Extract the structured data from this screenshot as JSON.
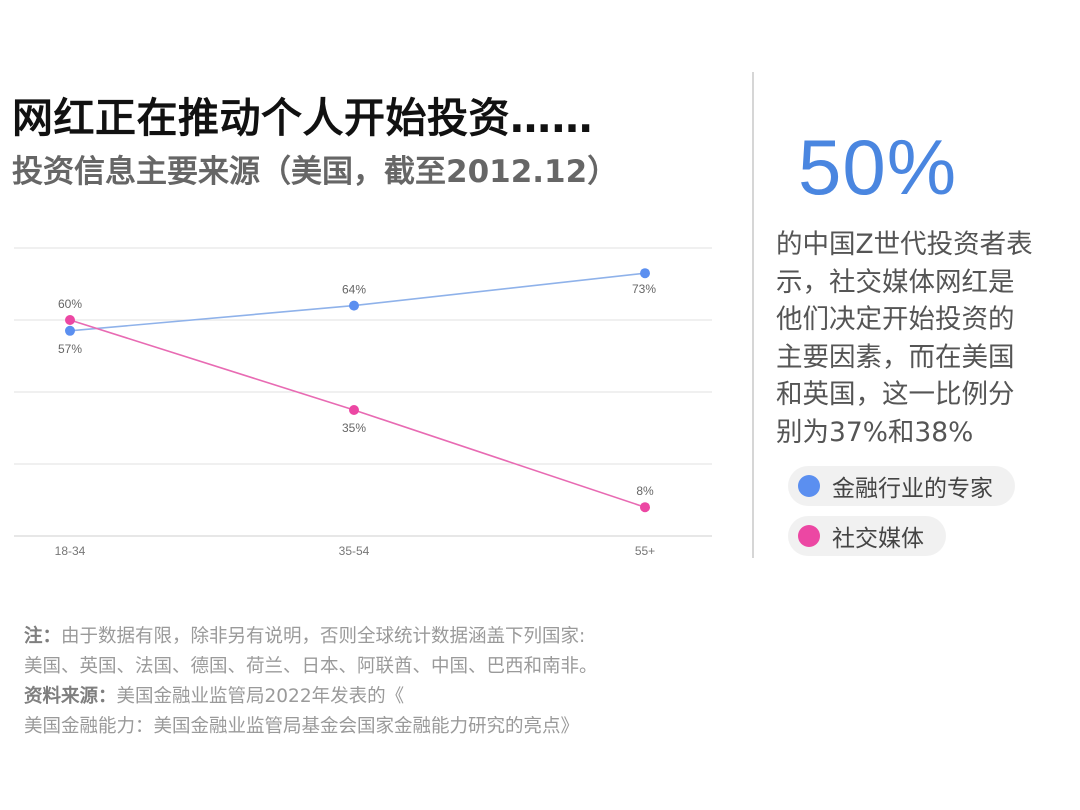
{
  "header": {
    "title": "网红正在推动个人开始投资……",
    "subtitle": "投资信息主要来源（美国，截至2012.12）"
  },
  "chart_data": {
    "type": "line",
    "title": "投资信息主要来源（美国，截至2012.12）",
    "categories": [
      "18-34",
      "35-54",
      "55+"
    ],
    "series": [
      {
        "name": "金融行业的专家",
        "values": [
          57,
          64,
          73
        ],
        "labels": [
          "57%",
          "64%",
          "73%"
        ],
        "color": "#5b8ff0",
        "line_color": "#8fb2ea"
      },
      {
        "name": "社交媒体",
        "values": [
          60,
          35,
          8
        ],
        "labels": [
          "60%",
          "35%",
          "8%"
        ],
        "color": "#ec47a3",
        "line_color": "#e86bb3"
      }
    ],
    "ylim": [
      0,
      80
    ],
    "grid": true,
    "xlabel": "",
    "ylabel": ""
  },
  "side": {
    "big_stat": "50%",
    "text": "的中国Z世代投资者表\n示，社交媒体网红是\n他们决定开始投资的\n主要因素，而在美国\n和英国，这一比例分\n别为37%和38%"
  },
  "legend": [
    {
      "label": "金融行业的专家",
      "color": "#5b8ff0"
    },
    {
      "label": "社交媒体",
      "color": "#ec47a3"
    }
  ],
  "notes": {
    "note_label": "注：",
    "note_line1": "由于数据有限，除非另有说明，否则全球统计数据涵盖下列国家:",
    "note_line2": "美国、英国、法国、德国、荷兰、日本、阿联酋、中国、巴西和南非。",
    "source_label": "资料来源：",
    "source_line1": "美国金融业监管局2022年发表的《",
    "source_line2": "美国金融能力：美国金融业监管局基金会国家金融能力研究的亮点》"
  }
}
